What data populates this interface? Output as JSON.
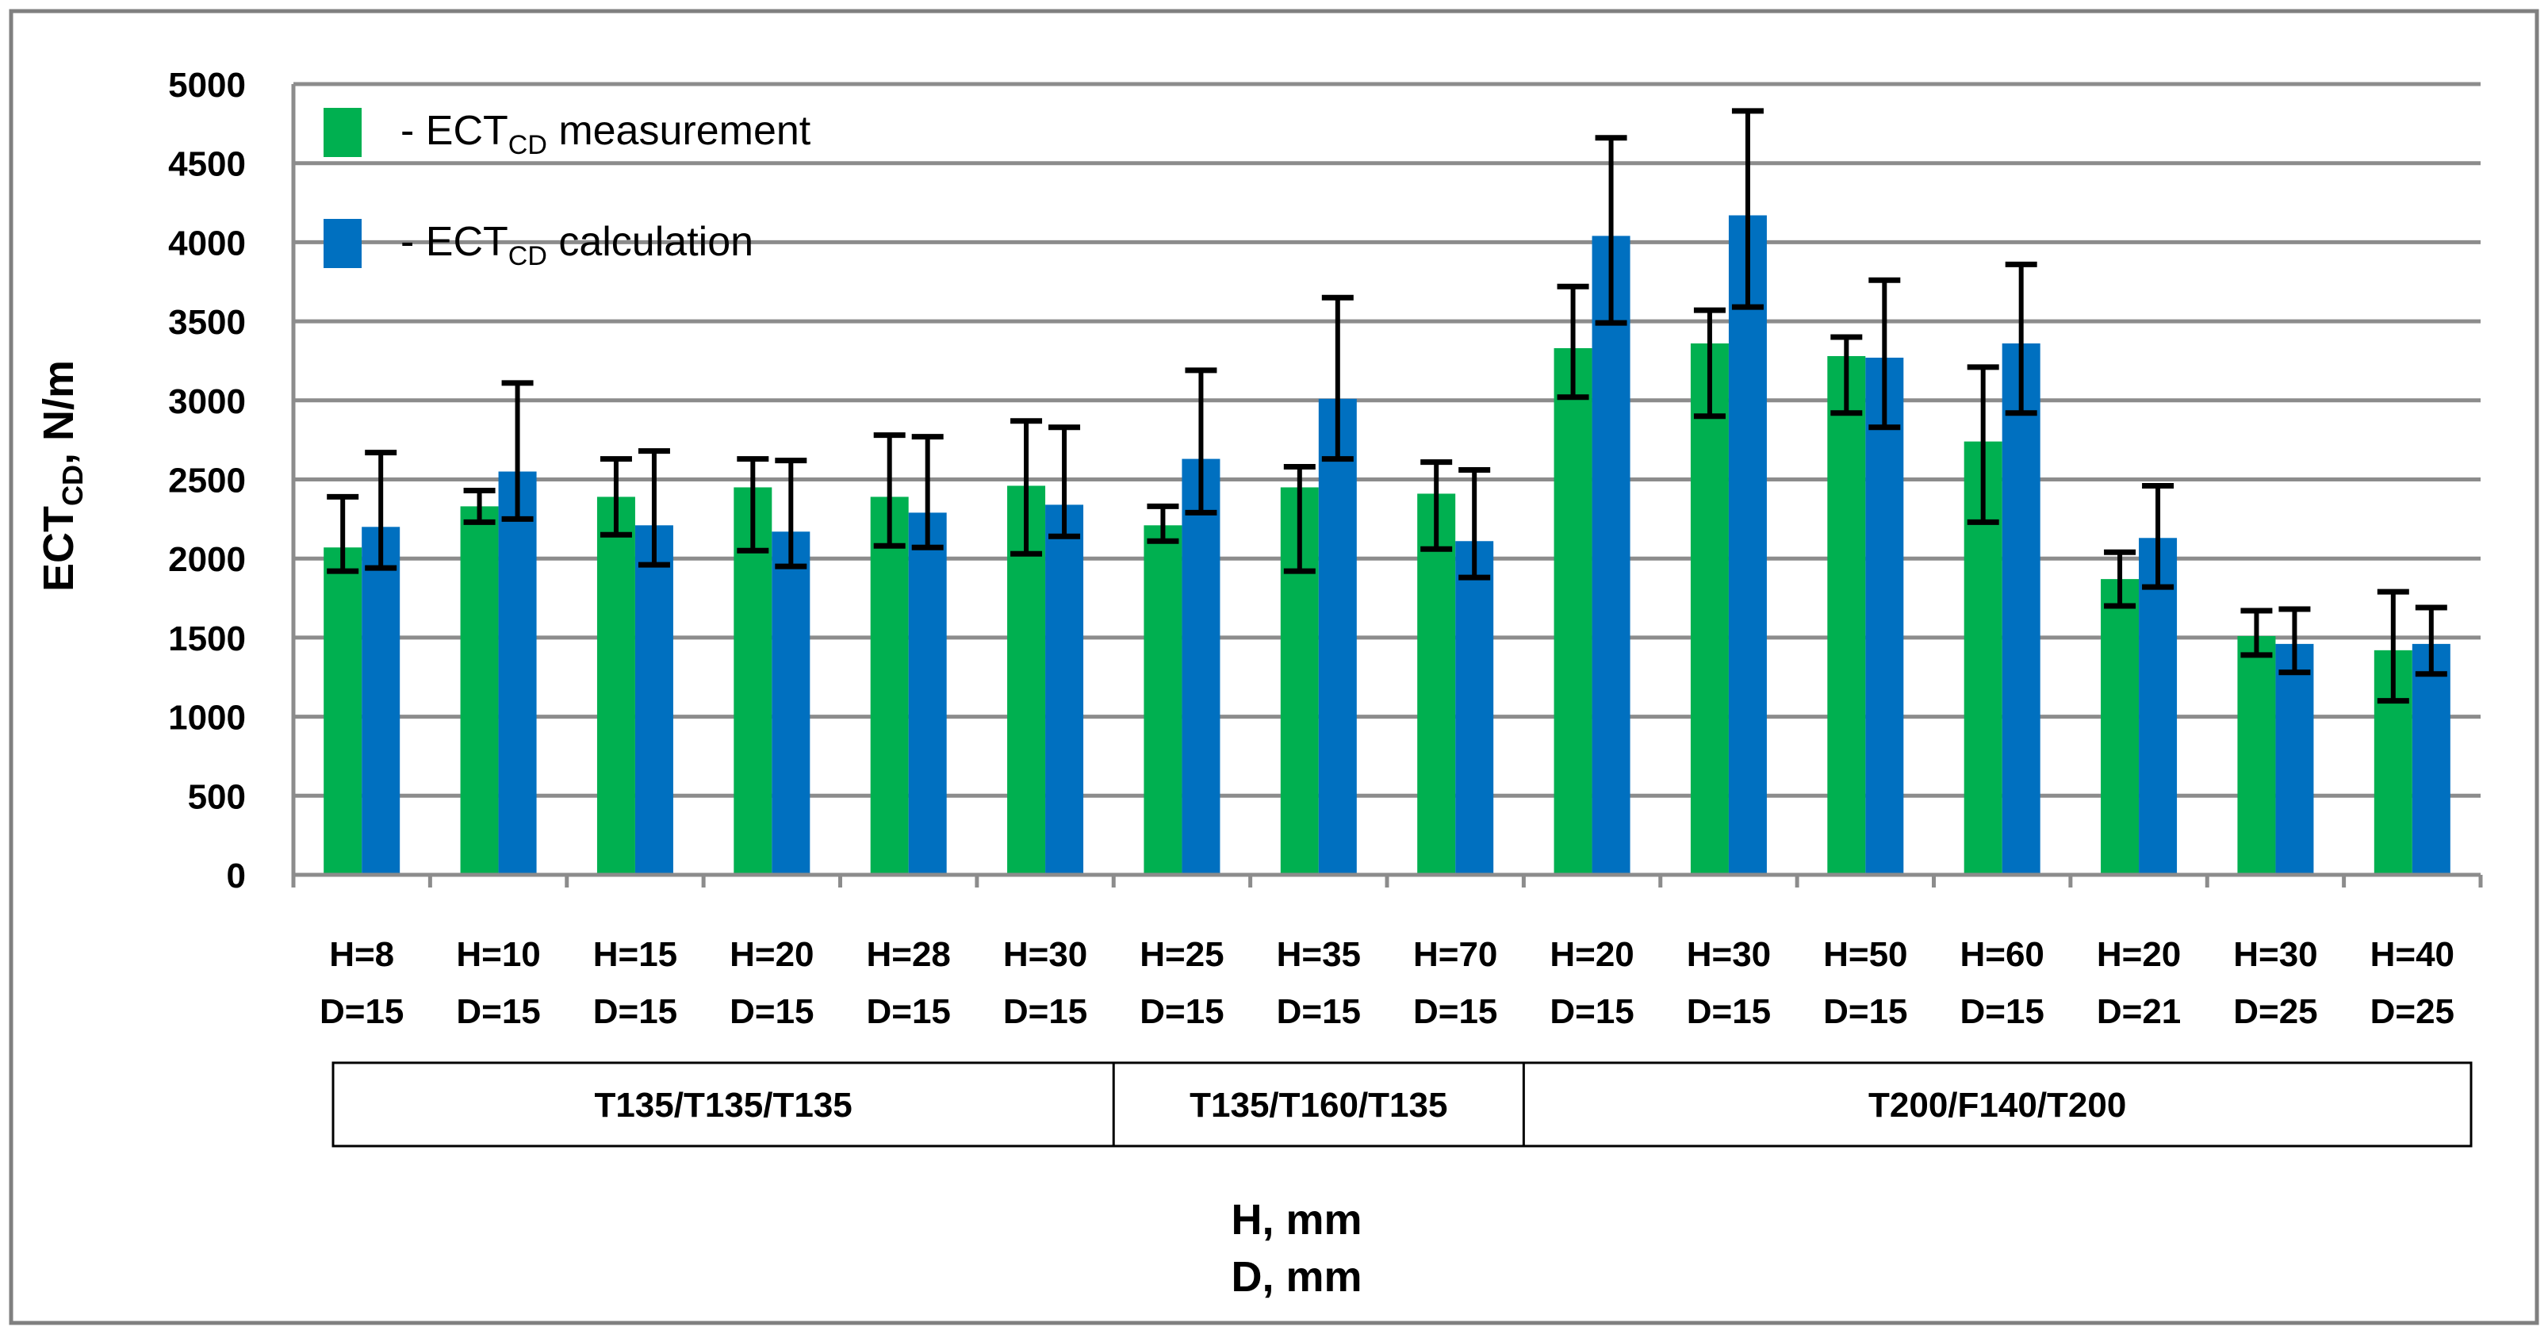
{
  "chart_data": {
    "type": "bar",
    "title": "",
    "ylabel": {
      "main": "ECT",
      "sub": "CD",
      "rest": ", N/m"
    },
    "xlabel": [
      "H, mm",
      "D, mm"
    ],
    "ylim": [
      0,
      5000
    ],
    "yticks": [
      0,
      500,
      1000,
      1500,
      2000,
      2500,
      3000,
      3500,
      4000,
      4500,
      5000
    ],
    "grid": true,
    "legend_position": "top-left",
    "categories": [
      [
        "H=8",
        "D=15"
      ],
      [
        "H=10",
        "D=15"
      ],
      [
        "H=15",
        "D=15"
      ],
      [
        "H=20",
        "D=15"
      ],
      [
        "H=28",
        "D=15"
      ],
      [
        "H=30",
        "D=15"
      ],
      [
        "H=25",
        "D=15"
      ],
      [
        "H=35",
        "D=15"
      ],
      [
        "H=70",
        "D=15"
      ],
      [
        "H=20",
        "D=15"
      ],
      [
        "H=30",
        "D=15"
      ],
      [
        "H=50",
        "D=15"
      ],
      [
        "H=60",
        "D=15"
      ],
      [
        "H=20",
        "D=21"
      ],
      [
        "H=30",
        "D=25"
      ],
      [
        "H=40",
        "D=25"
      ]
    ],
    "groups": [
      {
        "label": "T135/T135/T135",
        "start": 0,
        "end": 5
      },
      {
        "label": "T135/T160/T135",
        "start": 6,
        "end": 8
      },
      {
        "label": "T200/F140/T200",
        "start": 9,
        "end": 15
      }
    ],
    "series": [
      {
        "name": "measurement",
        "legend_prefix": "- ECT",
        "legend_sub": "CD",
        "legend_suffix": " measurement",
        "color": "#00b050",
        "values": [
          2070,
          2330,
          2390,
          2450,
          2390,
          2460,
          2210,
          2450,
          2410,
          3330,
          3360,
          3280,
          2740,
          1870,
          1510,
          1420
        ],
        "err_low": [
          1920,
          2230,
          2150,
          2050,
          2080,
          2030,
          2110,
          1920,
          2060,
          3020,
          2900,
          2920,
          2230,
          1700,
          1390,
          1100
        ],
        "err_high": [
          2390,
          2430,
          2630,
          2630,
          2780,
          2870,
          2330,
          2580,
          2610,
          3720,
          3570,
          3400,
          3210,
          2040,
          1670,
          1790
        ]
      },
      {
        "name": "calculation",
        "legend_prefix": "- ECT",
        "legend_sub": "CD",
        "legend_suffix": " calculation",
        "color": "#0070c0",
        "values": [
          2200,
          2550,
          2210,
          2170,
          2290,
          2340,
          2630,
          3010,
          2110,
          4040,
          4170,
          3270,
          3360,
          2130,
          1460,
          1460
        ],
        "err_low": [
          1940,
          2250,
          1960,
          1950,
          2070,
          2140,
          2290,
          2630,
          1880,
          3490,
          3590,
          2830,
          2920,
          1820,
          1280,
          1270
        ],
        "err_high": [
          2670,
          3110,
          2680,
          2620,
          2770,
          2830,
          3190,
          3650,
          2560,
          4660,
          4830,
          3760,
          3860,
          2460,
          1680,
          1690
        ]
      }
    ]
  }
}
